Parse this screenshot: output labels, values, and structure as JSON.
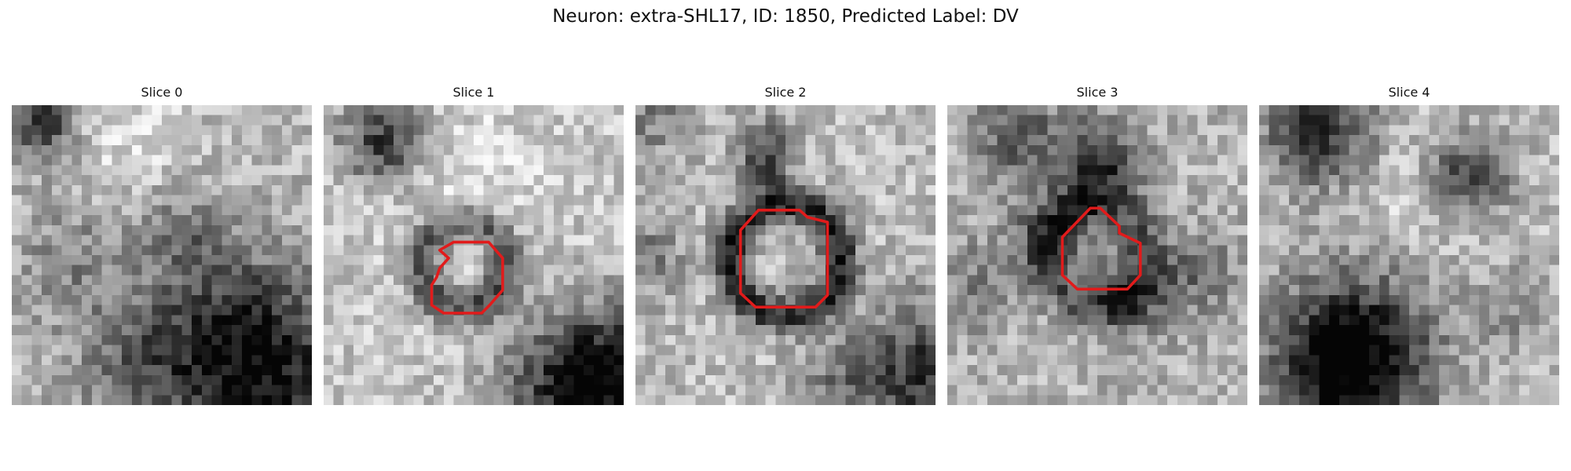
{
  "figure": {
    "title": "Neuron: extra-SHL17, ID: 1850, Predicted Label: DV",
    "contour_color": "#e11b1b",
    "panels": [
      {
        "title": "Slice 0",
        "has_contour": false
      },
      {
        "title": "Slice 1",
        "has_contour": true
      },
      {
        "title": "Slice 2",
        "has_contour": true
      },
      {
        "title": "Slice 3",
        "has_contour": true
      },
      {
        "title": "Slice 4",
        "has_contour": false
      }
    ]
  }
}
